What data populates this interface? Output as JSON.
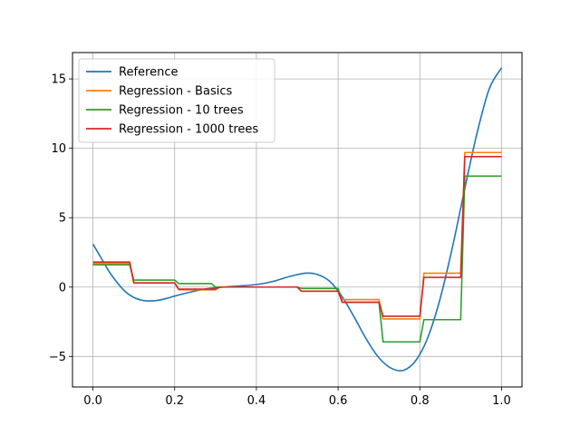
{
  "chart_data": {
    "type": "line",
    "title": "",
    "xlabel": "",
    "ylabel": "",
    "xlim": [
      -0.05,
      1.05
    ],
    "ylim": [
      -7.2,
      16.9
    ],
    "xticks": [
      0.0,
      0.2,
      0.4,
      0.6,
      0.8,
      1.0
    ],
    "xtick_labels": [
      "0.0",
      "0.2",
      "0.4",
      "0.6",
      "0.8",
      "1.0"
    ],
    "yticks": [
      -5,
      0,
      5,
      10,
      15
    ],
    "ytick_labels": [
      "−5",
      "0",
      "5",
      "10",
      "15"
    ],
    "grid": true,
    "legend_position": "top-left",
    "series": [
      {
        "name": "Reference",
        "color": "#1f77b4",
        "style": "smooth",
        "x": [
          0.0,
          0.02,
          0.04,
          0.06,
          0.08,
          0.1,
          0.12,
          0.14,
          0.16,
          0.18,
          0.2,
          0.24,
          0.28,
          0.32,
          0.36,
          0.4,
          0.44,
          0.48,
          0.52,
          0.55,
          0.58,
          0.61,
          0.64,
          0.67,
          0.7,
          0.73,
          0.76,
          0.79,
          0.82,
          0.85,
          0.88,
          0.91,
          0.94,
          0.97,
          1.0
        ],
        "y": [
          3.1,
          2.1,
          1.1,
          0.3,
          -0.35,
          -0.75,
          -0.95,
          -1.0,
          -0.95,
          -0.82,
          -0.65,
          -0.35,
          -0.12,
          0.0,
          0.08,
          0.18,
          0.4,
          0.75,
          1.0,
          0.9,
          0.4,
          -0.7,
          -2.2,
          -3.8,
          -5.1,
          -5.85,
          -6.0,
          -5.3,
          -3.6,
          -0.8,
          2.9,
          7.1,
          11.1,
          14.3,
          15.8
        ]
      },
      {
        "name": "Regression - Basics",
        "color": "#ff7f0e",
        "style": "linear",
        "x": [
          0.0,
          0.09,
          0.1,
          0.2,
          0.21,
          0.3,
          0.31,
          0.5,
          0.51,
          0.6,
          0.61,
          0.7,
          0.71,
          0.8,
          0.81,
          0.9,
          0.91,
          1.0
        ],
        "y": [
          1.7,
          1.7,
          0.3,
          0.3,
          -0.2,
          -0.2,
          0.0,
          0.0,
          -0.3,
          -0.3,
          -0.9,
          -0.9,
          -2.3,
          -2.3,
          1.0,
          1.0,
          9.7,
          9.7
        ]
      },
      {
        "name": "Regression - 10 trees",
        "color": "#2ca02c",
        "style": "linear",
        "x": [
          0.0,
          0.09,
          0.1,
          0.2,
          0.21,
          0.29,
          0.3,
          0.5,
          0.51,
          0.6,
          0.61,
          0.7,
          0.71,
          0.8,
          0.81,
          0.9,
          0.91,
          1.0
        ],
        "y": [
          1.6,
          1.6,
          0.5,
          0.5,
          0.25,
          0.25,
          0.0,
          0.0,
          -0.1,
          -0.1,
          -1.1,
          -1.1,
          -3.95,
          -3.95,
          -2.35,
          -2.35,
          8.0,
          8.0
        ]
      },
      {
        "name": "Regression - 1000 trees",
        "color": "#d62728",
        "style": "linear",
        "x": [
          0.0,
          0.09,
          0.1,
          0.2,
          0.21,
          0.3,
          0.31,
          0.5,
          0.51,
          0.6,
          0.61,
          0.7,
          0.71,
          0.8,
          0.81,
          0.9,
          0.91,
          1.0
        ],
        "y": [
          1.8,
          1.8,
          0.3,
          0.3,
          -0.15,
          -0.15,
          0.0,
          0.0,
          -0.3,
          -0.3,
          -1.1,
          -1.1,
          -2.1,
          -2.1,
          0.7,
          0.7,
          9.4,
          9.4
        ]
      }
    ]
  }
}
